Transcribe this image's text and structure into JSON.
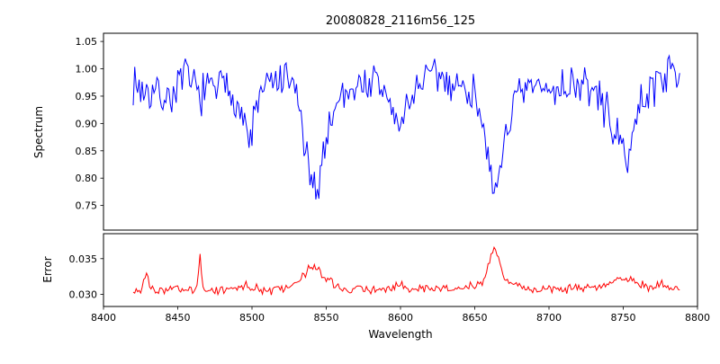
{
  "chart_data": {
    "type": "line",
    "title": "20080828_2116m56_125",
    "xlabel": "Wavelength",
    "xlim": [
      8400,
      8800
    ],
    "xticks": [
      8400,
      8450,
      8500,
      8550,
      8600,
      8650,
      8700,
      8750,
      8800
    ],
    "xtick_labels": [
      "8400",
      "8450",
      "8500",
      "8550",
      "8600",
      "8650",
      "8700",
      "8750",
      "8800"
    ],
    "grid": false,
    "legend": "none",
    "panels": [
      {
        "name": "spectrum",
        "ylabel": "Spectrum",
        "color": "#0000ff",
        "ylim": [
          0.705,
          1.065
        ],
        "yticks": [
          1.05,
          1.0,
          0.95,
          0.9,
          0.85,
          0.8,
          0.75
        ],
        "ytick_labels": [
          "1.05",
          "1.00",
          "0.95",
          "0.90",
          "0.85",
          "0.80",
          "0.75"
        ],
        "x_start": 8420,
        "x_end": 8788,
        "x_step": 1,
        "noise_amplitude": 0.045,
        "seed": 7,
        "envelope": [
          [
            8420,
            0.975
          ],
          [
            8428,
            0.96
          ],
          [
            8436,
            0.955
          ],
          [
            8444,
            0.945
          ],
          [
            8450,
            0.97
          ],
          [
            8456,
            0.985
          ],
          [
            8464,
            0.955
          ],
          [
            8472,
            0.962
          ],
          [
            8480,
            0.968
          ],
          [
            8488,
            0.955
          ],
          [
            8493,
            0.92
          ],
          [
            8498,
            0.862
          ],
          [
            8503,
            0.93
          ],
          [
            8508,
            0.965
          ],
          [
            8516,
            0.975
          ],
          [
            8524,
            0.975
          ],
          [
            8530,
            0.958
          ],
          [
            8536,
            0.85
          ],
          [
            8540,
            0.78
          ],
          [
            8543,
            0.768
          ],
          [
            8547,
            0.83
          ],
          [
            8552,
            0.9
          ],
          [
            8558,
            0.945
          ],
          [
            8566,
            0.965
          ],
          [
            8574,
            0.972
          ],
          [
            8582,
            0.975
          ],
          [
            8589,
            0.958
          ],
          [
            8594,
            0.93
          ],
          [
            8599,
            0.885
          ],
          [
            8604,
            0.93
          ],
          [
            8610,
            0.965
          ],
          [
            8618,
            0.985
          ],
          [
            8626,
            0.985
          ],
          [
            8634,
            0.975
          ],
          [
            8642,
            0.965
          ],
          [
            8650,
            0.952
          ],
          [
            8656,
            0.915
          ],
          [
            8660,
            0.8
          ],
          [
            8663,
            0.745
          ],
          [
            8666,
            0.8
          ],
          [
            8671,
            0.89
          ],
          [
            8677,
            0.935
          ],
          [
            8684,
            0.955
          ],
          [
            8692,
            0.965
          ],
          [
            8700,
            0.96
          ],
          [
            8708,
            0.965
          ],
          [
            8716,
            0.975
          ],
          [
            8724,
            0.97
          ],
          [
            8732,
            0.952
          ],
          [
            8740,
            0.918
          ],
          [
            8746,
            0.868
          ],
          [
            8751,
            0.835
          ],
          [
            8756,
            0.875
          ],
          [
            8762,
            0.935
          ],
          [
            8768,
            0.965
          ],
          [
            8775,
            0.985
          ],
          [
            8782,
            0.995
          ],
          [
            8788,
            1.0
          ]
        ]
      },
      {
        "name": "error",
        "ylabel": "Error",
        "color": "#ff0000",
        "ylim": [
          0.0283,
          0.0385
        ],
        "yticks": [
          0.035,
          0.03
        ],
        "ytick_labels": [
          "0.035",
          "0.030"
        ],
        "x_start": 8420,
        "x_end": 8788,
        "x_step": 1,
        "noise_amplitude": 0.0008,
        "seed": 3,
        "envelope": [
          [
            8420,
            0.0305
          ],
          [
            8426,
            0.0308
          ],
          [
            8429,
            0.033
          ],
          [
            8432,
            0.0306
          ],
          [
            8440,
            0.0305
          ],
          [
            8448,
            0.0307
          ],
          [
            8456,
            0.0306
          ],
          [
            8463,
            0.0305
          ],
          [
            8465,
            0.035
          ],
          [
            8467,
            0.0306
          ],
          [
            8475,
            0.0306
          ],
          [
            8483,
            0.0307
          ],
          [
            8490,
            0.031
          ],
          [
            8497,
            0.0314
          ],
          [
            8502,
            0.0308
          ],
          [
            8510,
            0.0306
          ],
          [
            8518,
            0.0307
          ],
          [
            8526,
            0.031
          ],
          [
            8533,
            0.032
          ],
          [
            8538,
            0.0336
          ],
          [
            8542,
            0.0338
          ],
          [
            8546,
            0.033
          ],
          [
            8551,
            0.0318
          ],
          [
            8558,
            0.031
          ],
          [
            8566,
            0.0307
          ],
          [
            8574,
            0.0307
          ],
          [
            8582,
            0.0306
          ],
          [
            8590,
            0.0308
          ],
          [
            8596,
            0.0312
          ],
          [
            8600,
            0.0318
          ],
          [
            8604,
            0.0311
          ],
          [
            8612,
            0.0307
          ],
          [
            8620,
            0.0308
          ],
          [
            8628,
            0.0309
          ],
          [
            8636,
            0.0308
          ],
          [
            8644,
            0.0309
          ],
          [
            8650,
            0.0312
          ],
          [
            8656,
            0.0318
          ],
          [
            8660,
            0.0345
          ],
          [
            8663,
            0.0368
          ],
          [
            8666,
            0.035
          ],
          [
            8669,
            0.033
          ],
          [
            8674,
            0.0315
          ],
          [
            8680,
            0.031
          ],
          [
            8688,
            0.0307
          ],
          [
            8696,
            0.0306
          ],
          [
            8704,
            0.0307
          ],
          [
            8712,
            0.0308
          ],
          [
            8720,
            0.0309
          ],
          [
            8728,
            0.031
          ],
          [
            8736,
            0.0312
          ],
          [
            8742,
            0.0318
          ],
          [
            8748,
            0.0322
          ],
          [
            8754,
            0.032
          ],
          [
            8760,
            0.0315
          ],
          [
            8766,
            0.031
          ],
          [
            8772,
            0.0312
          ],
          [
            8778,
            0.0314
          ],
          [
            8782,
            0.0308
          ],
          [
            8788,
            0.0306
          ]
        ]
      }
    ]
  }
}
